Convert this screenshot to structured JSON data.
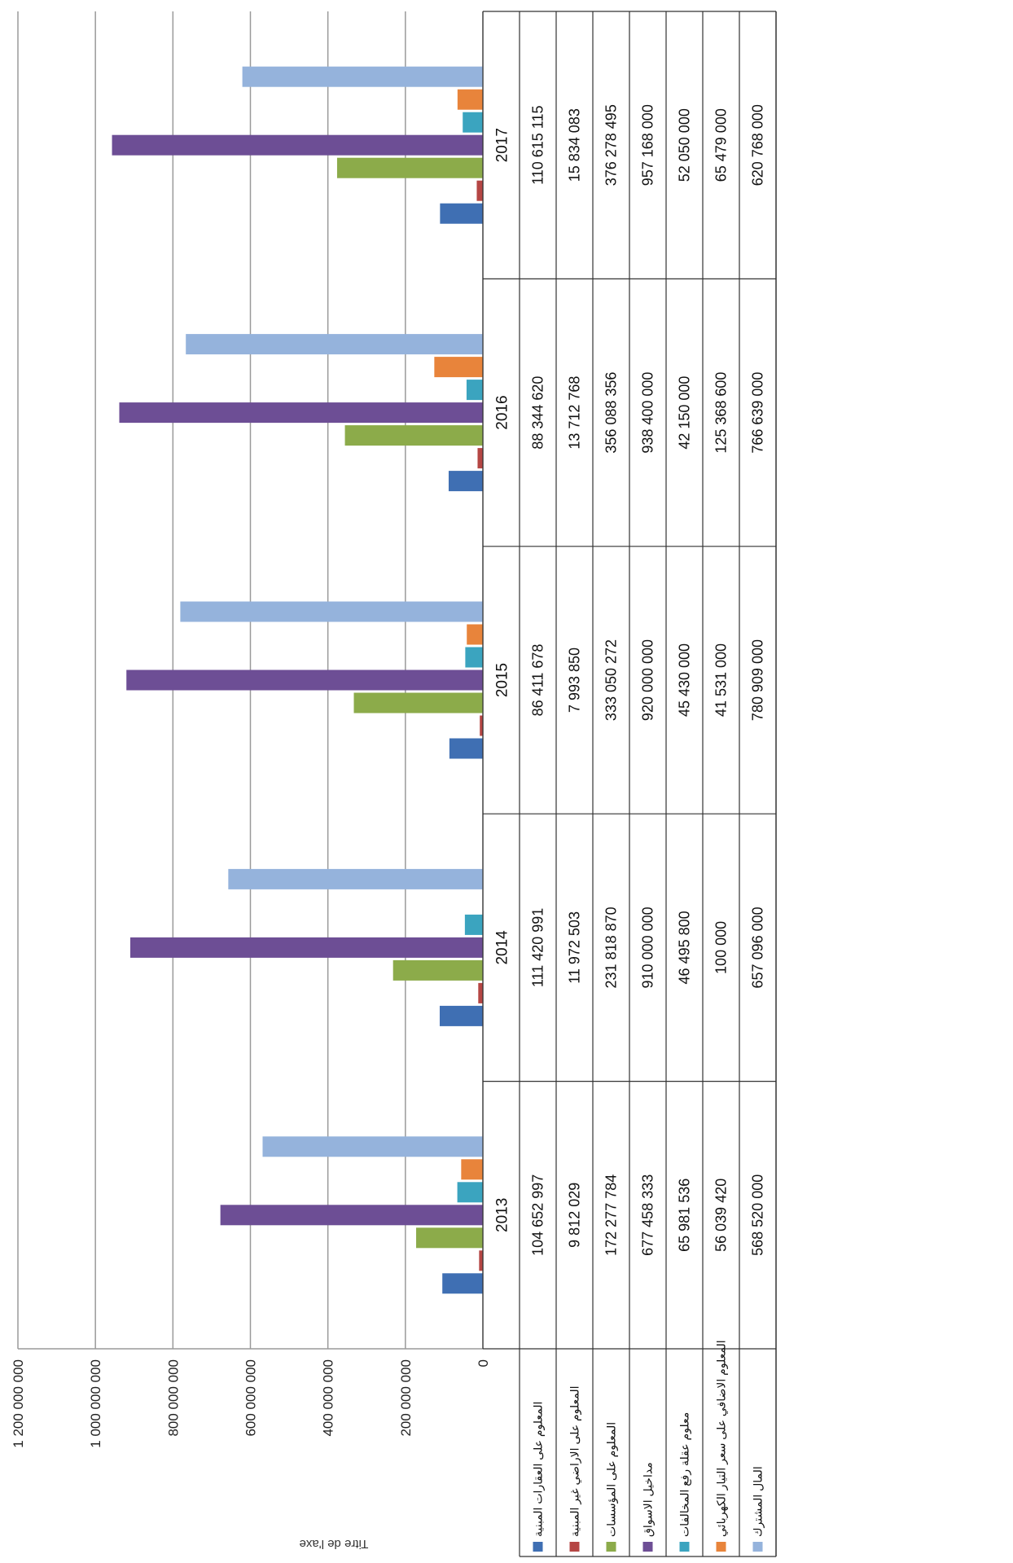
{
  "chart_data": {
    "type": "bar",
    "ylabel": "Titre de l'axe",
    "ylim": [
      0,
      1200000000
    ],
    "y_ticks": [
      0,
      200000000,
      400000000,
      600000000,
      800000000,
      1000000000,
      1200000000
    ],
    "y_tick_labels": [
      "0",
      "200 000 000",
      "400 000 000",
      "600 000 000",
      "800 000 000",
      "1 000 000 000",
      "1 200 000 000"
    ],
    "grid": true,
    "legend": "data-table",
    "categories": [
      "2013",
      "2014",
      "2015",
      "2016",
      "2017"
    ],
    "series": [
      {
        "name": "المعلوم على العقارات المبنية",
        "color": "#3f6fb3",
        "values": [
          104652997,
          111420991,
          86411678,
          88344620,
          110615115
        ],
        "labels": [
          "104 652 997",
          "111 420 991",
          "86 411 678",
          "88 344 620",
          "110 615 115"
        ]
      },
      {
        "name": "المعلوم على الاراضي غير المبنية",
        "color": "#b54644",
        "values": [
          9812029,
          11972503,
          7993850,
          13712768,
          15834083
        ],
        "labels": [
          "9 812 029",
          "11 972 503",
          "7 993 850",
          "13 712 768",
          "15 834 083"
        ]
      },
      {
        "name": "المعلوم على المؤسسات",
        "color": "#8cab4a",
        "values": [
          172277784,
          231818870,
          333050272,
          356088356,
          376278495
        ],
        "labels": [
          "172 277 784",
          "231 818 870",
          "333 050 272",
          "356 088 356",
          "376 278 495"
        ]
      },
      {
        "name": "مداخيل الاسواق",
        "color": "#6d4e95",
        "values": [
          677458333,
          910000000,
          920000000,
          938400000,
          957168000
        ],
        "labels": [
          "677 458 333",
          "910 000 000",
          "920 000 000",
          "938 400 000",
          "957 168 000"
        ]
      },
      {
        "name": "معلوم عقلة رفع المخالفات",
        "color": "#3ba4bf",
        "values": [
          65981536,
          46495800,
          45430000,
          42150000,
          52050000
        ],
        "labels": [
          "65 981 536",
          "46 495 800",
          "45 430 000",
          "42 150 000",
          "52 050 000"
        ]
      },
      {
        "name": "المعلوم الاضافي على سعر التيار الكهربائي",
        "color": "#e8843b",
        "values": [
          56039420,
          100000,
          41531000,
          125368600,
          65479000
        ],
        "labels": [
          "56 039 420",
          "100 000",
          "41 531 000",
          "125 368 600",
          "65 479 000"
        ]
      },
      {
        "name": "المال المشترك",
        "color": "#95b3dc",
        "values": [
          568520000,
          657096000,
          780909000,
          766639000,
          620768000
        ],
        "labels": [
          "568 520 000",
          "657 096 000",
          "780 909 000",
          "766 639 000",
          "620 768 000"
        ]
      }
    ]
  }
}
